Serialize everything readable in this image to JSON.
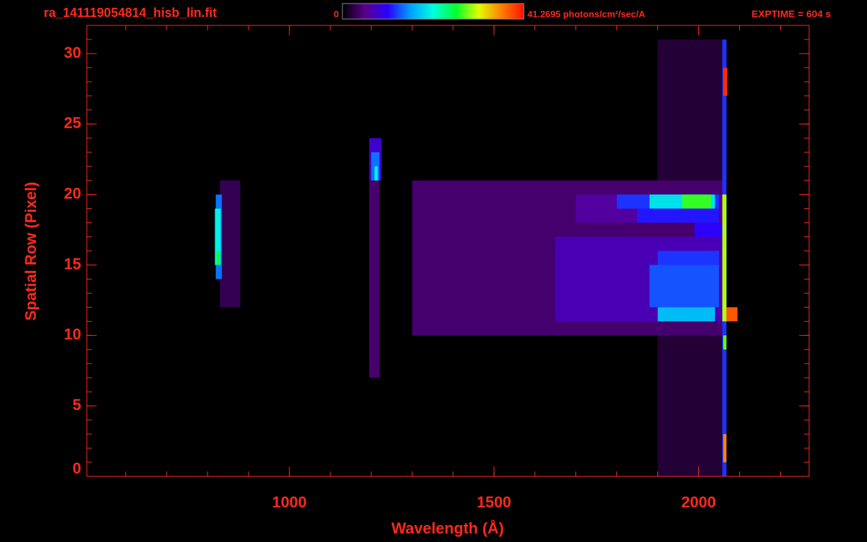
{
  "chart_data": {
    "type": "heatmap",
    "title": "ra_141119054814_hisb_lin.fit",
    "annotation": "EXPTIME = 604 s",
    "x_label": "Wavelength (Å)",
    "y_label": "Spatial Row (Pixel)",
    "xlim": [
      505,
      2270
    ],
    "xticks": [
      1000,
      1500,
      2000
    ],
    "xminor": 100,
    "ylim": [
      0,
      32
    ],
    "yticks": [
      0,
      5,
      10,
      15,
      20,
      25,
      30
    ],
    "yminor": 1,
    "colorbar": {
      "lim": [
        0,
        41.2695
      ],
      "ticks": [
        0,
        {
          "value": 41.2695,
          "label": "41.2695 photons/cm²/sec/A"
        }
      ]
    },
    "colormap": [
      "#000000",
      "#5a008c",
      "#2a00ff",
      "#00a0ff",
      "#00ffe0",
      "#00ff30",
      "#e0ff00",
      "#ff8000",
      "#ff1000"
    ],
    "color": "#ff2a1a",
    "cells": [
      {
        "wavelength": [
          1900,
          2060
        ],
        "rows": [
          0,
          31
        ],
        "value": 2
      },
      {
        "wavelength": [
          1300,
          2060
        ],
        "rows": [
          10,
          21
        ],
        "value": 4
      },
      {
        "wavelength": [
          1650,
          2060
        ],
        "rows": [
          11,
          17
        ],
        "value": 7
      },
      {
        "wavelength": [
          1700,
          2060
        ],
        "rows": [
          18,
          20
        ],
        "value": 6
      },
      {
        "wavelength": [
          1800,
          2050
        ],
        "rows": [
          19,
          20
        ],
        "value": 12
      },
      {
        "wavelength": [
          1880,
          2040
        ],
        "rows": [
          19,
          20
        ],
        "value": 19
      },
      {
        "wavelength": [
          1960,
          2030
        ],
        "rows": [
          19,
          20
        ],
        "value": 27
      },
      {
        "wavelength": [
          1850,
          2050
        ],
        "rows": [
          18,
          19
        ],
        "value": 11
      },
      {
        "wavelength": [
          1990,
          2060
        ],
        "rows": [
          17,
          18
        ],
        "value": 10
      },
      {
        "wavelength": [
          1900,
          2050
        ],
        "rows": [
          15,
          16
        ],
        "value": 12
      },
      {
        "wavelength": [
          1880,
          2050
        ],
        "rows": [
          12,
          15
        ],
        "value": 13
      },
      {
        "wavelength": [
          1900,
          2040
        ],
        "rows": [
          11,
          12
        ],
        "value": 17
      },
      {
        "wavelength": [
          830,
          880
        ],
        "rows": [
          12,
          21
        ],
        "value": 3
      },
      {
        "wavelength": [
          820,
          835
        ],
        "rows": [
          14,
          20
        ],
        "value": 14
      },
      {
        "wavelength": [
          818,
          832
        ],
        "rows": [
          15,
          19
        ],
        "value": 20
      },
      {
        "wavelength": [
          822,
          830
        ],
        "rows": [
          15,
          16
        ],
        "value": 26
      },
      {
        "wavelength": [
          1195,
          1220
        ],
        "rows": [
          7,
          21
        ],
        "value": 4
      },
      {
        "wavelength": [
          1195,
          1225
        ],
        "rows": [
          21,
          24
        ],
        "value": 8
      },
      {
        "wavelength": [
          1200,
          1220
        ],
        "rows": [
          21,
          23
        ],
        "value": 14
      },
      {
        "wavelength": [
          1208,
          1216
        ],
        "rows": [
          21,
          22
        ],
        "value": 20
      },
      {
        "wavelength": [
          2058,
          2068
        ],
        "rows": [
          0,
          31
        ],
        "value": 12
      },
      {
        "wavelength": [
          2058,
          2068
        ],
        "rows": [
          11,
          20
        ],
        "value": 30
      },
      {
        "wavelength": [
          2060,
          2070
        ],
        "rows": [
          27,
          29
        ],
        "value": 40
      },
      {
        "wavelength": [
          2060,
          2068
        ],
        "rows": [
          1,
          3
        ],
        "value": 36
      },
      {
        "wavelength": [
          2068,
          2095
        ],
        "rows": [
          11,
          12
        ],
        "value": 38
      },
      {
        "wavelength": [
          2060,
          2068
        ],
        "rows": [
          9,
          10
        ],
        "value": 28
      }
    ]
  }
}
